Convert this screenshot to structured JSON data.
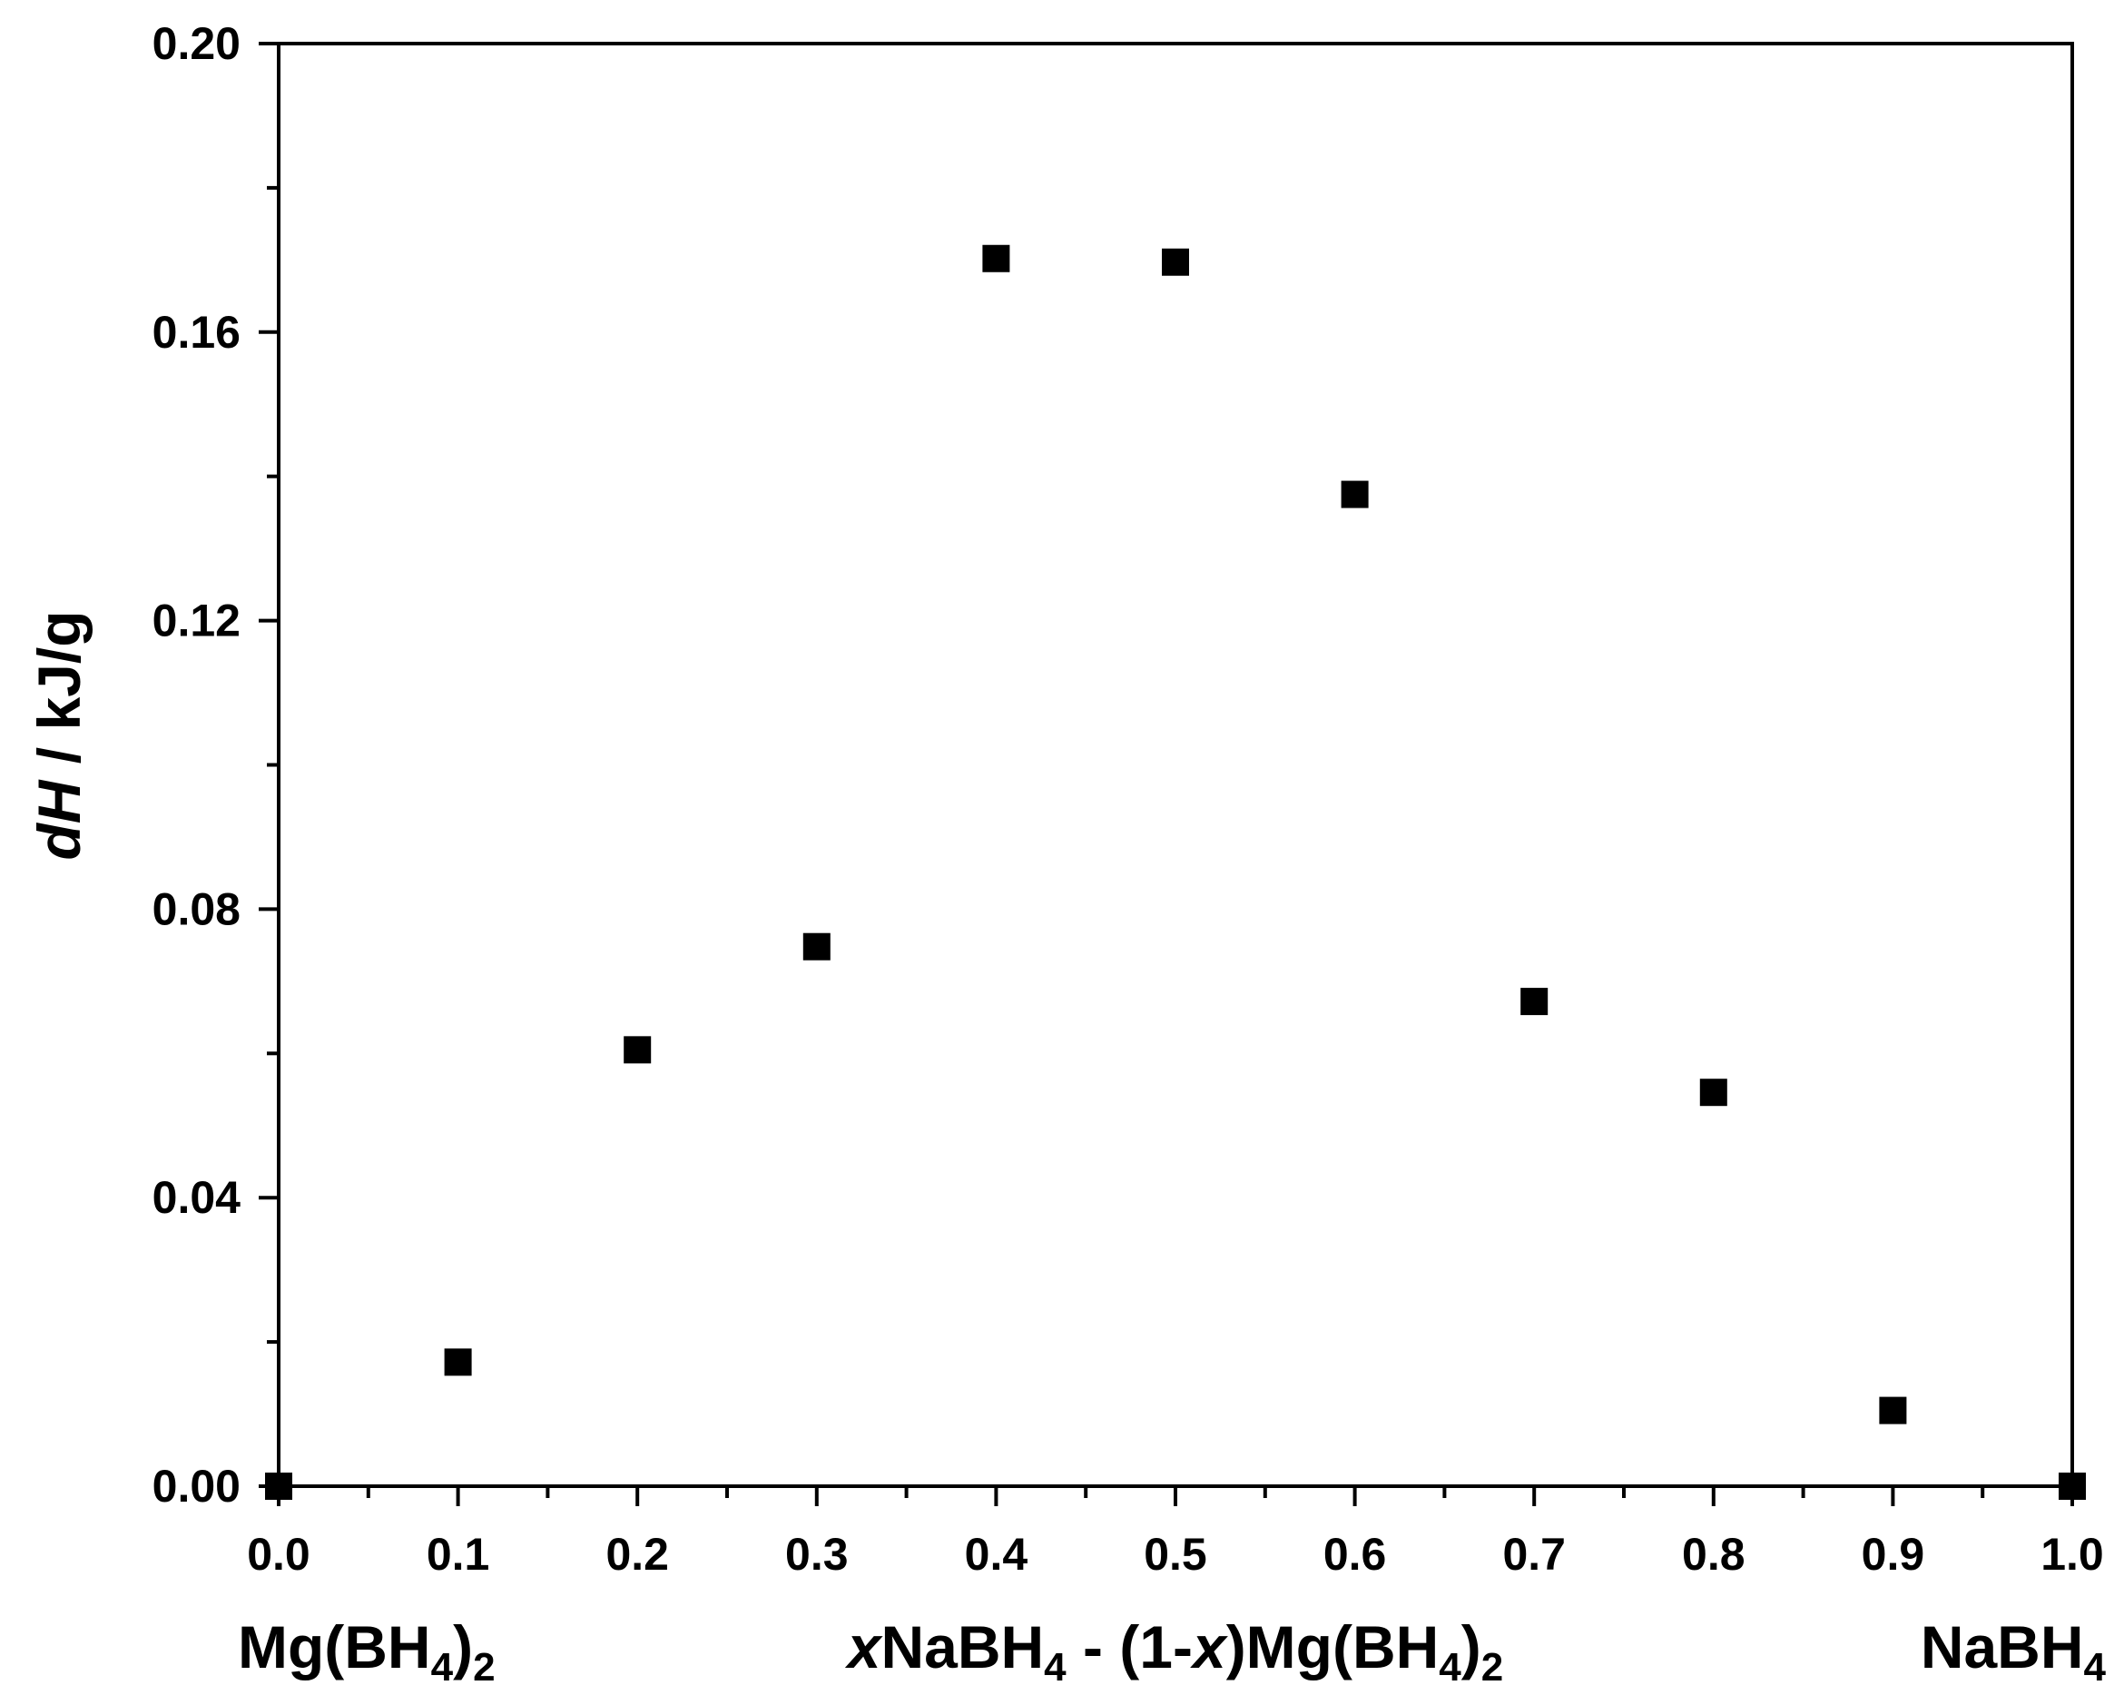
{
  "chart_data": {
    "type": "scatter",
    "title": "",
    "xlabel": {
      "italic": "x",
      "rest": "NaBH",
      "sub1": "4",
      "mid": " - (1-",
      "italic2": "x",
      "mid2": ")Mg(BH",
      "sub2": "4",
      "close": ")",
      "sub3": "2"
    },
    "ylabel": {
      "italic": "dH",
      "rest": " / kJ/g"
    },
    "left_label": {
      "main": "Mg(BH",
      "sub1": "4",
      "close": ")",
      "sub2": "2"
    },
    "right_label": {
      "main": "NaBH",
      "sub": "4"
    },
    "xlim": [
      0.0,
      1.0
    ],
    "ylim": [
      0.0,
      0.2
    ],
    "xticks": [
      "0.0",
      "0.1",
      "0.2",
      "0.3",
      "0.4",
      "0.5",
      "0.6",
      "0.7",
      "0.8",
      "0.9",
      "1.0"
    ],
    "xtick_values": [
      0.0,
      0.1,
      0.2,
      0.3,
      0.4,
      0.5,
      0.6,
      0.7,
      0.8,
      0.9,
      1.0
    ],
    "yticks": [
      "0.00",
      "0.04",
      "0.08",
      "0.12",
      "0.16",
      "0.20"
    ],
    "ytick_values": [
      0.0,
      0.04,
      0.08,
      0.12,
      0.16,
      0.2
    ],
    "grid": false,
    "legend": "none",
    "marker_color": "#000000",
    "series": [
      {
        "x": [
          0.0,
          0.1,
          0.2,
          0.3,
          0.4,
          0.5,
          0.6,
          0.7,
          0.8,
          0.9,
          1.0
        ],
        "y": [
          0.0,
          0.0172,
          0.0605,
          0.0748,
          0.1702,
          0.1697,
          0.1375,
          0.0672,
          0.0546,
          0.0105,
          0.0
        ]
      }
    ]
  }
}
